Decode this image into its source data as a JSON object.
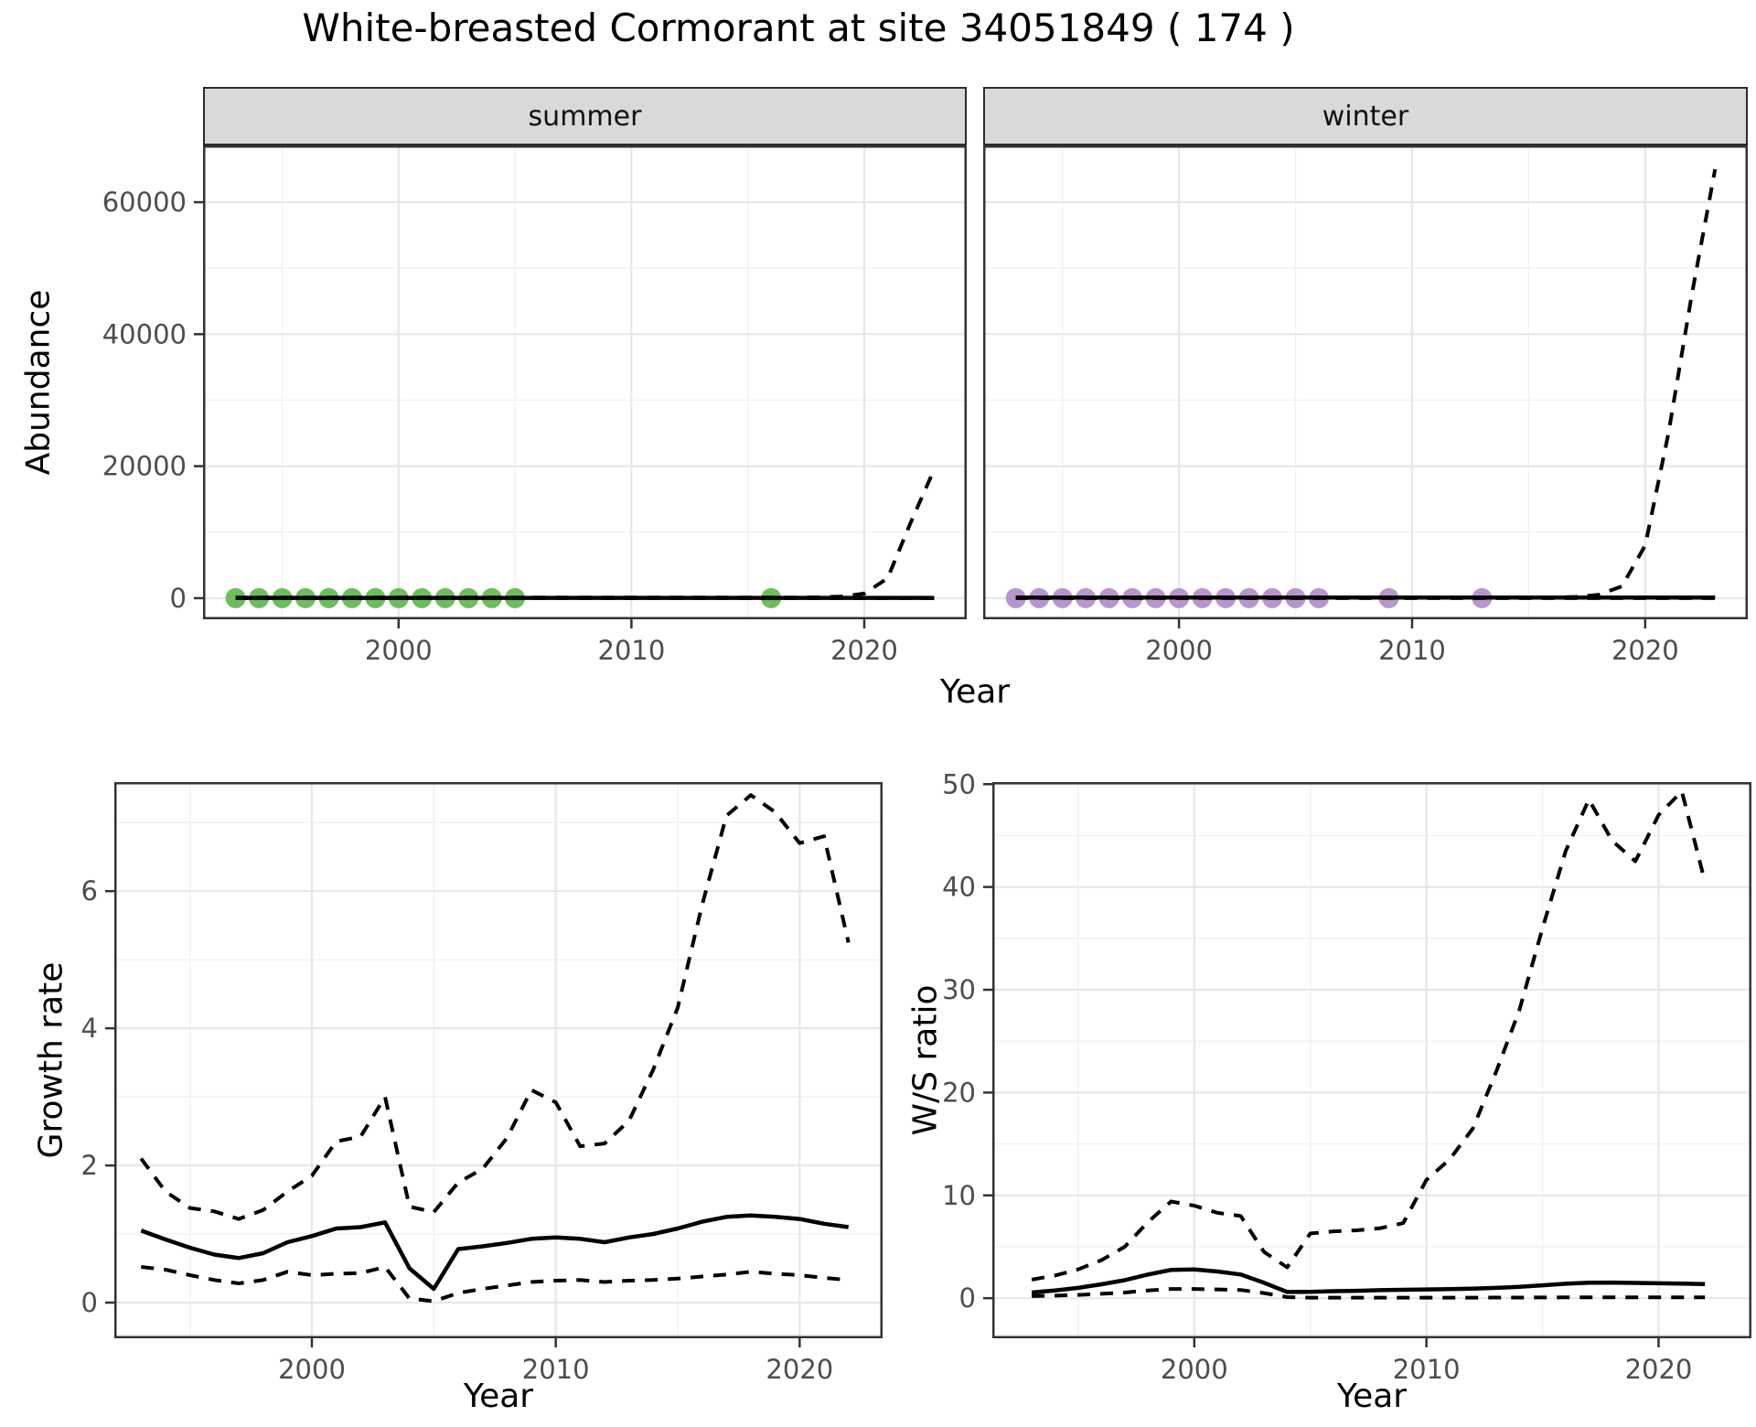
{
  "title": "White-breasted Cormorant at site 34051849 ( 174 )",
  "colors": {
    "grid_major": "#e7e7e7",
    "grid_minor": "#f1f1f1",
    "panel_border": "#333333",
    "tick": "#333333",
    "tick_label": "#4d4d4d",
    "strip_fill": "#d9d9d9",
    "line": "#000000",
    "summer_point": "#6cbe5c",
    "winter_point": "#b896cd"
  },
  "chart_data": [
    {
      "id": "abundance_summer",
      "type": "line",
      "facet_label": "summer",
      "xlabel": "Year",
      "ylabel": "Abundance",
      "xlim": [
        1991.6,
        2024.4
      ],
      "ylim": [
        -3200,
        68600
      ],
      "x_ticks": [
        2000,
        2010,
        2020
      ],
      "x_minor": [
        1995,
        2005,
        2015
      ],
      "y_ticks": [
        0,
        20000,
        40000,
        60000
      ],
      "y_minor": [
        10000,
        30000,
        50000
      ],
      "grid": true,
      "legend": "none",
      "series": [
        {
          "name": "fit",
          "style": "solid",
          "x": [
            1993,
            1994,
            1995,
            1996,
            1997,
            1998,
            1999,
            2000,
            2001,
            2002,
            2003,
            2004,
            2005,
            2006,
            2007,
            2008,
            2009,
            2010,
            2011,
            2012,
            2013,
            2014,
            2015,
            2016,
            2017,
            2018,
            2019,
            2020,
            2021,
            2022,
            2023
          ],
          "y": [
            50,
            50,
            50,
            50,
            50,
            50,
            50,
            50,
            50,
            50,
            50,
            50,
            50,
            50,
            50,
            50,
            50,
            50,
            50,
            50,
            50,
            50,
            50,
            50,
            50,
            50,
            50,
            50,
            50,
            50,
            50
          ]
        },
        {
          "name": "upper_ci",
          "style": "dashed",
          "x": [
            1993,
            1994,
            1995,
            1996,
            1997,
            1998,
            1999,
            2000,
            2001,
            2002,
            2003,
            2004,
            2005,
            2006,
            2007,
            2008,
            2009,
            2010,
            2011,
            2012,
            2013,
            2014,
            2015,
            2016,
            2017,
            2018,
            2019,
            2020,
            2021,
            2022,
            2023
          ],
          "y": [
            80,
            80,
            80,
            80,
            80,
            80,
            80,
            80,
            80,
            80,
            80,
            80,
            80,
            80,
            80,
            80,
            80,
            80,
            80,
            80,
            80,
            80,
            80,
            80,
            80,
            120,
            250,
            700,
            3000,
            11500,
            19500
          ]
        },
        {
          "name": "lower_ci",
          "style": "dashed",
          "x": [
            1993,
            1994,
            1995,
            1996,
            1997,
            1998,
            1999,
            2000,
            2001,
            2002,
            2003,
            2004,
            2005,
            2006,
            2007,
            2008,
            2009,
            2010,
            2011,
            2012,
            2013,
            2014,
            2015,
            2016,
            2017,
            2018,
            2019,
            2020,
            2021,
            2022,
            2023
          ],
          "y": [
            0,
            0,
            0,
            0,
            0,
            0,
            0,
            0,
            0,
            0,
            0,
            0,
            0,
            0,
            0,
            0,
            0,
            0,
            0,
            0,
            0,
            0,
            0,
            0,
            0,
            0,
            0,
            0,
            0,
            0,
            0
          ]
        }
      ],
      "points": {
        "name": "observed_summer_counts",
        "color": "#6cbe5c",
        "years": [
          1993,
          1994,
          1995,
          1996,
          1997,
          1998,
          1999,
          2000,
          2001,
          2002,
          2003,
          2004,
          2005,
          2016
        ],
        "values": [
          0,
          0,
          0,
          0,
          0,
          0,
          0,
          0,
          0,
          0,
          0,
          0,
          0,
          0
        ]
      }
    },
    {
      "id": "abundance_winter",
      "type": "line",
      "facet_label": "winter",
      "xlabel": "Year",
      "ylabel": "Abundance",
      "xlim": [
        1991.6,
        2024.4
      ],
      "ylim": [
        -3200,
        68600
      ],
      "x_ticks": [
        2000,
        2010,
        2020
      ],
      "x_minor": [
        1995,
        2005,
        2015
      ],
      "y_ticks": [
        0,
        20000,
        40000,
        60000
      ],
      "y_minor": [
        10000,
        30000,
        50000
      ],
      "grid": true,
      "legend": "none",
      "series": [
        {
          "name": "fit",
          "style": "solid",
          "x": [
            1993,
            1994,
            1995,
            1996,
            1997,
            1998,
            1999,
            2000,
            2001,
            2002,
            2003,
            2004,
            2005,
            2006,
            2007,
            2008,
            2009,
            2010,
            2011,
            2012,
            2013,
            2014,
            2015,
            2016,
            2017,
            2018,
            2019,
            2020,
            2021,
            2022,
            2023
          ],
          "y": [
            100,
            100,
            100,
            100,
            100,
            100,
            100,
            100,
            100,
            100,
            100,
            100,
            100,
            100,
            100,
            100,
            100,
            100,
            100,
            100,
            100,
            100,
            100,
            100,
            100,
            100,
            100,
            100,
            100,
            100,
            100
          ]
        },
        {
          "name": "upper_ci",
          "style": "dashed",
          "x": [
            1993,
            1994,
            1995,
            1996,
            1997,
            1998,
            1999,
            2000,
            2001,
            2002,
            2003,
            2004,
            2005,
            2006,
            2007,
            2008,
            2009,
            2010,
            2011,
            2012,
            2013,
            2014,
            2015,
            2016,
            2017,
            2018,
            2019,
            2020,
            2021,
            2022,
            2023
          ],
          "y": [
            100,
            100,
            100,
            100,
            100,
            100,
            100,
            100,
            100,
            100,
            100,
            100,
            100,
            100,
            100,
            100,
            100,
            100,
            100,
            100,
            100,
            100,
            100,
            100,
            200,
            500,
            1800,
            8000,
            25000,
            46000,
            65000
          ]
        },
        {
          "name": "lower_ci",
          "style": "dashed",
          "x": [
            1993,
            1994,
            1995,
            1996,
            1997,
            1998,
            1999,
            2000,
            2001,
            2002,
            2003,
            2004,
            2005,
            2006,
            2007,
            2008,
            2009,
            2010,
            2011,
            2012,
            2013,
            2014,
            2015,
            2016,
            2017,
            2018,
            2019,
            2020,
            2021,
            2022,
            2023
          ],
          "y": [
            0,
            0,
            0,
            0,
            0,
            0,
            0,
            0,
            0,
            0,
            0,
            0,
            0,
            0,
            0,
            0,
            0,
            0,
            0,
            0,
            0,
            0,
            0,
            0,
            0,
            0,
            0,
            0,
            0,
            0,
            0
          ]
        }
      ],
      "points": {
        "name": "observed_winter_counts",
        "color": "#b896cd",
        "years": [
          1993,
          1994,
          1995,
          1996,
          1997,
          1998,
          1999,
          2000,
          2001,
          2002,
          2003,
          2004,
          2005,
          2006,
          2009,
          2013
        ],
        "values": [
          0,
          0,
          0,
          0,
          0,
          0,
          0,
          0,
          0,
          0,
          0,
          0,
          0,
          0,
          0,
          0
        ]
      }
    },
    {
      "id": "growth_rate",
      "type": "line",
      "facet_label": "",
      "xlabel": "Year",
      "ylabel": "Growth rate",
      "xlim": [
        1991.9,
        2023.4
      ],
      "ylim": [
        -0.52,
        7.59
      ],
      "x_ticks": [
        2000,
        2010,
        2020
      ],
      "x_minor": [
        1995,
        2005,
        2015
      ],
      "y_ticks": [
        0,
        2,
        4,
        6
      ],
      "y_minor": [
        1,
        3,
        5,
        7
      ],
      "grid": true,
      "legend": "none",
      "series": [
        {
          "name": "fit",
          "style": "solid",
          "x": [
            1993,
            1994,
            1995,
            1996,
            1997,
            1998,
            1999,
            2000,
            2001,
            2002,
            2003,
            2004,
            2005,
            2006,
            2007,
            2008,
            2009,
            2010,
            2011,
            2012,
            2013,
            2014,
            2015,
            2016,
            2017,
            2018,
            2019,
            2020,
            2021,
            2022
          ],
          "y": [
            1.05,
            0.92,
            0.8,
            0.7,
            0.65,
            0.72,
            0.88,
            0.97,
            1.08,
            1.1,
            1.17,
            0.5,
            0.2,
            0.78,
            0.82,
            0.87,
            0.93,
            0.95,
            0.93,
            0.88,
            0.95,
            1.0,
            1.08,
            1.18,
            1.25,
            1.27,
            1.25,
            1.22,
            1.15,
            1.1
          ]
        },
        {
          "name": "upper_ci",
          "style": "dashed",
          "x": [
            1993,
            1994,
            1995,
            1996,
            1997,
            1998,
            1999,
            2000,
            2001,
            2002,
            2003,
            2004,
            2005,
            2006,
            2007,
            2008,
            2009,
            2010,
            2011,
            2012,
            2013,
            2014,
            2015,
            2016,
            2017,
            2018,
            2019,
            2020,
            2021,
            2022
          ],
          "y": [
            2.1,
            1.62,
            1.38,
            1.33,
            1.22,
            1.35,
            1.62,
            1.85,
            2.35,
            2.42,
            3.0,
            1.4,
            1.32,
            1.75,
            1.95,
            2.4,
            3.1,
            2.92,
            2.28,
            2.32,
            2.65,
            3.4,
            4.3,
            5.8,
            7.1,
            7.4,
            7.15,
            6.7,
            6.8,
            5.25
          ]
        },
        {
          "name": "lower_ci",
          "style": "dashed",
          "x": [
            1993,
            1994,
            1995,
            1996,
            1997,
            1998,
            1999,
            2000,
            2001,
            2002,
            2003,
            2004,
            2005,
            2006,
            2007,
            2008,
            2009,
            2010,
            2011,
            2012,
            2013,
            2014,
            2015,
            2016,
            2017,
            2018,
            2019,
            2020,
            2021,
            2022
          ],
          "y": [
            0.52,
            0.48,
            0.4,
            0.33,
            0.28,
            0.33,
            0.45,
            0.4,
            0.42,
            0.43,
            0.52,
            0.06,
            0.02,
            0.14,
            0.2,
            0.25,
            0.3,
            0.32,
            0.33,
            0.3,
            0.32,
            0.33,
            0.35,
            0.38,
            0.41,
            0.45,
            0.42,
            0.4,
            0.36,
            0.33
          ]
        }
      ],
      "points": null
    },
    {
      "id": "ws_ratio",
      "type": "line",
      "facet_label": "",
      "xlabel": "Year",
      "ylabel": "W/S ratio",
      "xlim": [
        1991.3,
        2024.0
      ],
      "ylim": [
        -3.9,
        50.2
      ],
      "x_ticks": [
        2000,
        2010,
        2020
      ],
      "x_minor": [
        1995,
        2005,
        2015
      ],
      "y_ticks": [
        0,
        10,
        20,
        30,
        40,
        50
      ],
      "y_minor": [
        5,
        15,
        25,
        35,
        45
      ],
      "grid": true,
      "legend": "none",
      "series": [
        {
          "name": "fit",
          "style": "solid",
          "x": [
            1993,
            1994,
            1995,
            1996,
            1997,
            1998,
            1999,
            2000,
            2001,
            2002,
            2003,
            2004,
            2005,
            2006,
            2007,
            2008,
            2009,
            2010,
            2011,
            2012,
            2013,
            2014,
            2015,
            2016,
            2017,
            2018,
            2019,
            2020,
            2021,
            2022
          ],
          "y": [
            0.55,
            0.75,
            1.0,
            1.35,
            1.75,
            2.3,
            2.75,
            2.8,
            2.6,
            2.3,
            1.5,
            0.6,
            0.62,
            0.68,
            0.72,
            0.78,
            0.82,
            0.85,
            0.88,
            0.92,
            1.0,
            1.1,
            1.25,
            1.4,
            1.5,
            1.52,
            1.48,
            1.45,
            1.42,
            1.38
          ]
        },
        {
          "name": "upper_ci",
          "style": "dashed",
          "x": [
            1993,
            1994,
            1995,
            1996,
            1997,
            1998,
            1999,
            2000,
            2001,
            2002,
            2003,
            2004,
            2005,
            2006,
            2007,
            2008,
            2009,
            2010,
            2011,
            2012,
            2013,
            2014,
            2015,
            2016,
            2017,
            2018,
            2019,
            2020,
            2021,
            2022
          ],
          "y": [
            1.8,
            2.2,
            2.8,
            3.7,
            5.0,
            7.4,
            9.4,
            9.0,
            8.3,
            8.0,
            4.5,
            3.0,
            6.3,
            6.5,
            6.6,
            6.8,
            7.3,
            11.5,
            13.5,
            16.5,
            22.0,
            28.0,
            36.0,
            43.5,
            48.5,
            44.5,
            42.5,
            47.0,
            49.3,
            40.5
          ]
        },
        {
          "name": "lower_ci",
          "style": "dashed",
          "x": [
            1993,
            1994,
            1995,
            1996,
            1997,
            1998,
            1999,
            2000,
            2001,
            2002,
            2003,
            2004,
            2005,
            2006,
            2007,
            2008,
            2009,
            2010,
            2011,
            2012,
            2013,
            2014,
            2015,
            2016,
            2017,
            2018,
            2019,
            2020,
            2021,
            2022
          ],
          "y": [
            0.2,
            0.25,
            0.32,
            0.42,
            0.55,
            0.75,
            0.9,
            0.9,
            0.85,
            0.8,
            0.5,
            0.1,
            0.05,
            0.05,
            0.05,
            0.05,
            0.05,
            0.05,
            0.05,
            0.05,
            0.06,
            0.06,
            0.07,
            0.08,
            0.08,
            0.08,
            0.08,
            0.08,
            0.08,
            0.08
          ]
        }
      ],
      "points": null
    }
  ]
}
